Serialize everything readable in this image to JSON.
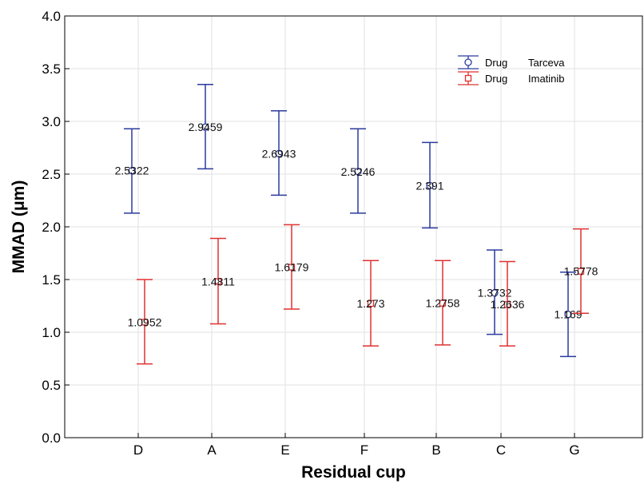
{
  "chart_data": {
    "type": "scatter",
    "xlabel": "Residual cup",
    "ylabel": "MMAD (μm)",
    "categories": [
      "D",
      "A",
      "E",
      "F",
      "B",
      "C",
      "G"
    ],
    "ylim": [
      0.0,
      4.0
    ],
    "yticks": [
      "0.0",
      "0.5",
      "1.0",
      "1.5",
      "2.0",
      "2.5",
      "3.0",
      "3.5",
      "4.0"
    ],
    "grid": true,
    "legend_position": "top-right",
    "series": [
      {
        "name": "Drug",
        "name_suffix": "Tarceva",
        "color": "#2b3a9e",
        "marker": "circle",
        "values": [
          2.5322,
          2.9459,
          2.6943,
          2.5246,
          2.391,
          1.3732,
          1.169
        ],
        "labels": [
          "2.5322",
          "2.9459",
          "2.6943",
          "2.5246",
          "2.391",
          "1.3732",
          "1.169"
        ],
        "lower": [
          2.13,
          2.55,
          2.3,
          2.13,
          1.99,
          0.98,
          0.77
        ],
        "upper": [
          2.93,
          3.35,
          3.1,
          2.93,
          2.8,
          1.78,
          1.57
        ]
      },
      {
        "name": "Drug",
        "name_suffix": "Imatinib",
        "color": "#e03030",
        "marker": "square",
        "values": [
          1.0952,
          1.4811,
          1.6179,
          1.273,
          1.2758,
          1.2636,
          1.5778
        ],
        "labels": [
          "1.0952",
          "1.4811",
          "1.6179",
          "1.273",
          "1.2758",
          "1.2636",
          "1.5778"
        ],
        "lower": [
          0.7,
          1.08,
          1.22,
          0.87,
          0.88,
          0.87,
          1.18
        ],
        "upper": [
          1.5,
          1.89,
          2.02,
          1.68,
          1.68,
          1.67,
          1.98
        ]
      }
    ]
  }
}
